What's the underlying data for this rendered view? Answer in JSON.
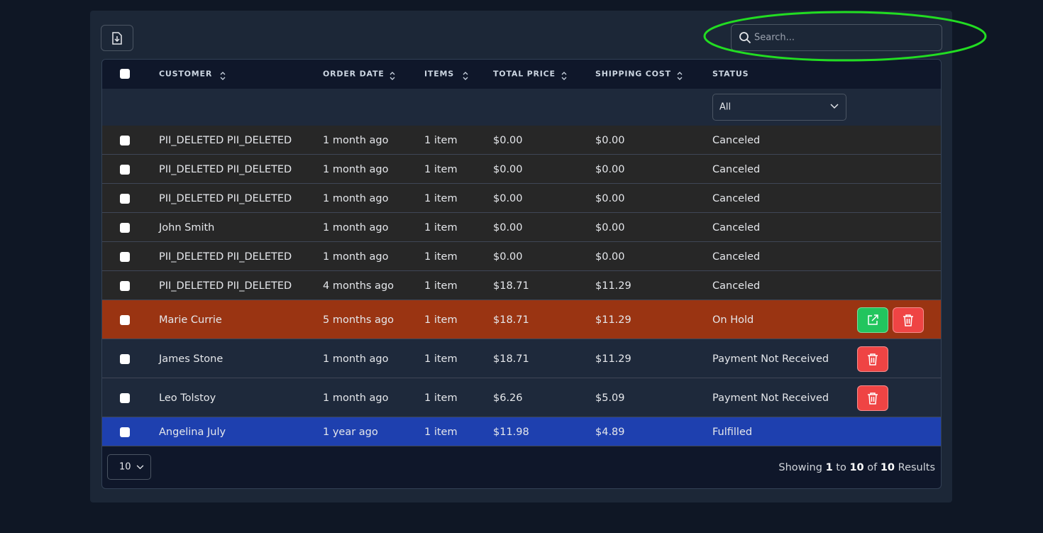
{
  "search": {
    "placeholder": "Search..."
  },
  "table": {
    "headers": [
      "CUSTOMER",
      "ORDER DATE",
      "ITEMS",
      "TOTAL PRICE",
      "SHIPPING COST",
      "STATUS"
    ],
    "status_filter": "All",
    "rows": [
      [
        "PII_DELETED PII_DELETED",
        "1 month ago",
        "1 item",
        "$0.00",
        "$0.00",
        "Canceled"
      ],
      [
        "PII_DELETED PII_DELETED",
        "1 month ago",
        "1 item",
        "$0.00",
        "$0.00",
        "Canceled"
      ],
      [
        "PII_DELETED PII_DELETED",
        "1 month ago",
        "1 item",
        "$0.00",
        "$0.00",
        "Canceled"
      ],
      [
        "John Smith",
        "1 month ago",
        "1 item",
        "$0.00",
        "$0.00",
        "Canceled"
      ],
      [
        "PII_DELETED PII_DELETED",
        "1 month ago",
        "1 item",
        "$0.00",
        "$0.00",
        "Canceled"
      ],
      [
        "PII_DELETED PII_DELETED",
        "4 months ago",
        "1 item",
        "$18.71",
        "$11.29",
        "Canceled"
      ],
      [
        "Marie Currie",
        "5 months ago",
        "1 item",
        "$18.71",
        "$11.29",
        "On Hold"
      ],
      [
        "James Stone",
        "1 month ago",
        "1 item",
        "$18.71",
        "$11.29",
        "Payment Not Received"
      ],
      [
        "Leo Tolstoy",
        "1 month ago",
        "1 item",
        "$6.26",
        "$5.09",
        "Payment Not Received"
      ],
      [
        "Angelina July",
        "1 year ago",
        "1 item",
        "$11.98",
        "$4.89",
        "Fulfilled"
      ]
    ]
  },
  "footer": {
    "per_page": "10",
    "showing": "Showing",
    "from": "1",
    "to_word": "to",
    "to": "10",
    "of_word": "of",
    "total": "10",
    "results": "Results"
  }
}
